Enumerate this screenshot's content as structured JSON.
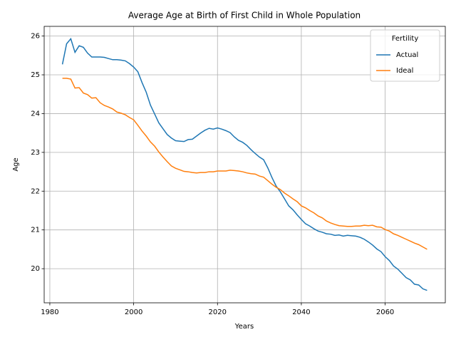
{
  "chart_data": {
    "type": "line",
    "title": "Average Age at Birth of First Child in Whole Population",
    "x_label": "Years",
    "y_label": "Age",
    "legend_title": "Fertility",
    "legend": "upper right",
    "grid": true,
    "xlim": [
      1978.65,
      2074.35
    ],
    "ylim": [
      19.12,
      26.25
    ],
    "xticks": [
      1980,
      2000,
      2020,
      2040,
      2060
    ],
    "yticks": [
      20,
      21,
      22,
      23,
      24,
      25,
      26
    ],
    "x": [
      1983,
      1984,
      1985,
      1986,
      1987,
      1988,
      1989,
      1990,
      1991,
      1992,
      1993,
      1994,
      1995,
      1996,
      1997,
      1998,
      1999,
      2000,
      2001,
      2002,
      2003,
      2004,
      2005,
      2006,
      2007,
      2008,
      2009,
      2010,
      2011,
      2012,
      2013,
      2014,
      2015,
      2016,
      2017,
      2018,
      2019,
      2020,
      2021,
      2022,
      2023,
      2024,
      2025,
      2026,
      2027,
      2028,
      2029,
      2030,
      2031,
      2032,
      2033,
      2034,
      2035,
      2036,
      2037,
      2038,
      2039,
      2040,
      2041,
      2042,
      2043,
      2044,
      2045,
      2046,
      2047,
      2048,
      2049,
      2050,
      2051,
      2052,
      2053,
      2054,
      2055,
      2056,
      2057,
      2058,
      2059,
      2060,
      2061,
      2062,
      2063,
      2064,
      2065,
      2066,
      2067,
      2068,
      2069,
      2070
    ],
    "series": [
      {
        "name": "Actual",
        "color": "#1f77b4",
        "values": [
          25.27,
          25.8,
          25.93,
          25.58,
          25.75,
          25.71,
          25.56,
          25.46,
          25.46,
          25.46,
          25.45,
          25.42,
          25.39,
          25.39,
          25.38,
          25.36,
          25.29,
          25.2,
          25.08,
          24.8,
          24.55,
          24.22,
          23.99,
          23.76,
          23.61,
          23.46,
          23.37,
          23.3,
          23.29,
          23.28,
          23.33,
          23.34,
          23.42,
          23.5,
          23.57,
          23.62,
          23.6,
          23.63,
          23.6,
          23.56,
          23.51,
          23.4,
          23.31,
          23.26,
          23.18,
          23.07,
          22.97,
          22.88,
          22.81,
          22.6,
          22.35,
          22.13,
          21.98,
          21.8,
          21.62,
          21.52,
          21.39,
          21.27,
          21.16,
          21.1,
          21.03,
          20.97,
          20.94,
          20.9,
          20.89,
          20.86,
          20.87,
          20.84,
          20.86,
          20.85,
          20.84,
          20.81,
          20.76,
          20.69,
          20.61,
          20.51,
          20.44,
          20.31,
          20.21,
          20.07,
          19.99,
          19.88,
          19.77,
          19.71,
          19.6,
          19.58,
          19.48,
          19.44
        ]
      },
      {
        "name": "Ideal",
        "color": "#ff7f0e",
        "values": [
          24.91,
          24.91,
          24.89,
          24.66,
          24.67,
          24.53,
          24.49,
          24.4,
          24.41,
          24.28,
          24.21,
          24.17,
          24.12,
          24.04,
          24.01,
          23.97,
          23.9,
          23.84,
          23.7,
          23.55,
          23.42,
          23.27,
          23.16,
          23.01,
          22.88,
          22.76,
          22.65,
          22.59,
          22.55,
          22.51,
          22.5,
          22.48,
          22.47,
          22.48,
          22.48,
          22.5,
          22.5,
          22.52,
          22.52,
          22.52,
          22.54,
          22.53,
          22.52,
          22.5,
          22.47,
          22.45,
          22.44,
          22.39,
          22.36,
          22.27,
          22.18,
          22.1,
          22.04,
          21.95,
          21.88,
          21.8,
          21.73,
          21.62,
          21.57,
          21.5,
          21.44,
          21.36,
          21.31,
          21.23,
          21.18,
          21.14,
          21.11,
          21.1,
          21.09,
          21.09,
          21.1,
          21.1,
          21.12,
          21.11,
          21.12,
          21.08,
          21.07,
          21.01,
          20.97,
          20.9,
          20.86,
          20.81,
          20.76,
          20.71,
          20.66,
          20.62,
          20.56,
          20.5
        ]
      }
    ]
  }
}
